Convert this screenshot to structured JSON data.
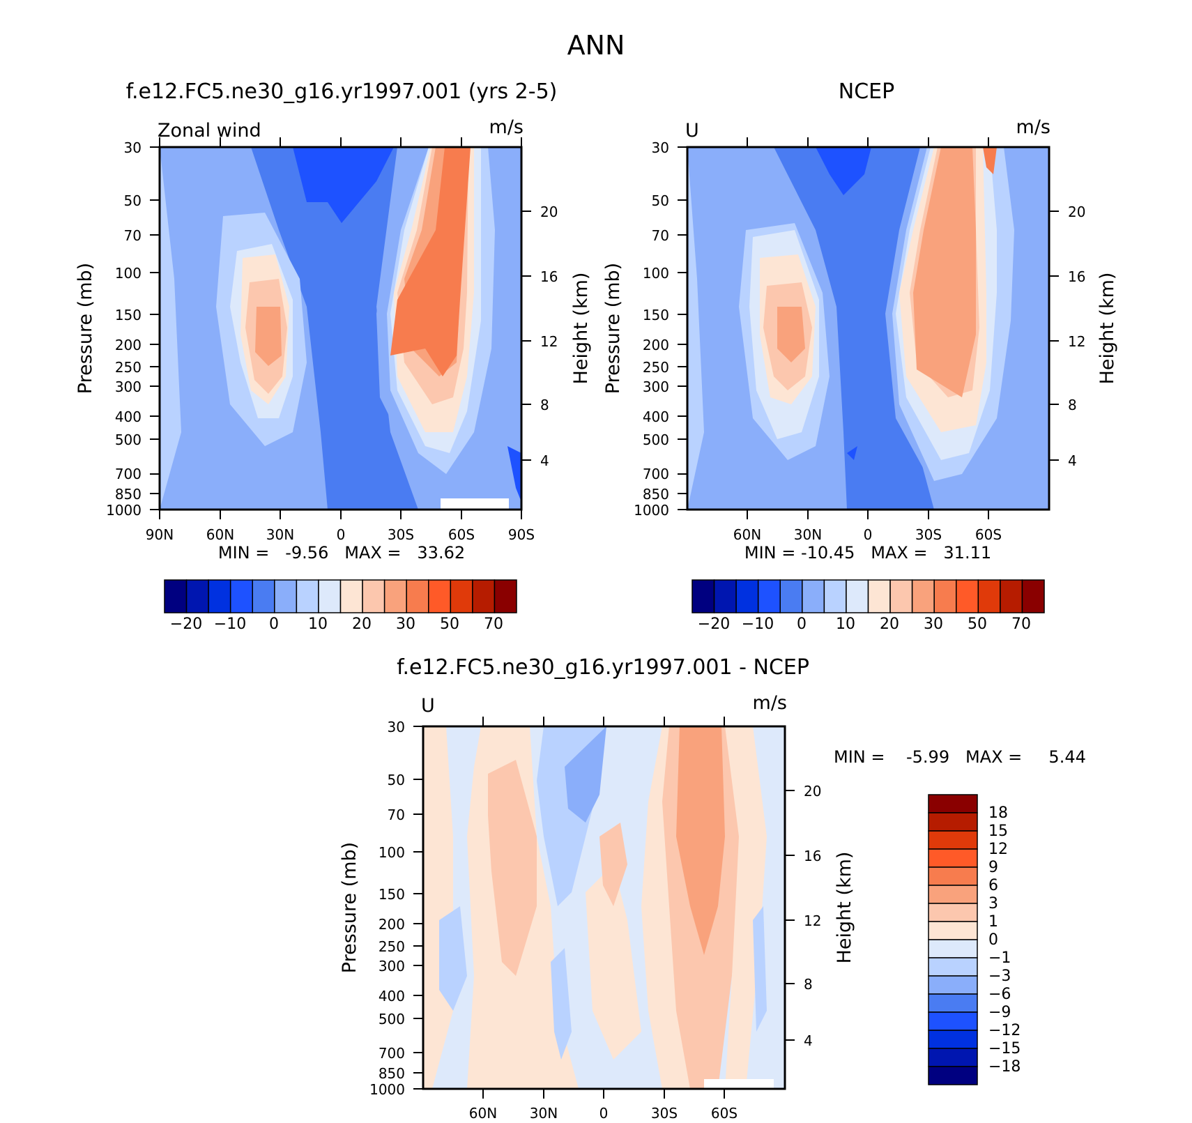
{
  "main_title": "ANN",
  "colors": {
    "p1": [
      "#000080",
      "#0016b0",
      "#0031e0",
      "#1e52ff",
      "#4a7cf2",
      "#8aaefa",
      "#b9d2ff",
      "#dde9fb",
      "#fde5d4",
      "#fcc7ae",
      "#f9a27c",
      "#f77c4e",
      "#ff5a28",
      "#e03a0a",
      "#b61c00",
      "#8a0000"
    ],
    "diff": [
      "#000080",
      "#0016b0",
      "#0031e0",
      "#1e52ff",
      "#4a7cf2",
      "#8aaefa",
      "#b9d2ff",
      "#dde9fb",
      "#fde5d4",
      "#fcc7ae",
      "#f9a27c",
      "#f77c4e",
      "#ff5a28",
      "#e03a0a",
      "#b61c00",
      "#8a0000"
    ],
    "white": "#ffffff"
  },
  "panels": {
    "model": {
      "title": "f.e12.FC5.ne30_g16.yr1997.001 (yrs 2-5)",
      "left_label": "Zonal wind",
      "unit": "m/s",
      "ylabel_left": "Pressure (mb)",
      "ylabel_right": "Height (km)",
      "stats": "MIN =   -9.56   MAX =   33.62"
    },
    "ncep": {
      "title": "NCEP",
      "left_label": "U",
      "unit": "m/s",
      "ylabel_left": "Pressure (mb)",
      "ylabel_right": "Height (km)",
      "stats": "MIN = -10.45   MAX =   31.11"
    },
    "diff": {
      "title": "f.e12.FC5.ne30_g16.yr1997.001 - NCEP",
      "left_label": "U",
      "unit": "m/s",
      "ylabel_left": "Pressure (mb)",
      "ylabel_right": "Height (km)",
      "stats": "MIN =    -5.99   MAX =     5.44"
    }
  },
  "chart_data": [
    {
      "type": "heatmap",
      "title": "f.e12.FC5.ne30_g16.yr1997.001 (yrs 2-5)",
      "xlabel": "",
      "ylabel": "Pressure (mb)",
      "ylabel_right": "Height (km)",
      "pressure_ticks": [
        30,
        50,
        70,
        100,
        150,
        200,
        250,
        300,
        400,
        500,
        700,
        850,
        1000
      ],
      "height_ticks": [
        20,
        16,
        12,
        8,
        4
      ],
      "lat_ticks": [
        "90N",
        "60N",
        "30N",
        "0",
        "30S",
        "60S",
        "90S"
      ],
      "colorbar": {
        "levels": [
          "-20",
          "-10",
          "0",
          "10",
          "20",
          "30",
          "50",
          "70"
        ],
        "orientation": "horizontal"
      },
      "min": -9.56,
      "max": 33.62
    },
    {
      "type": "heatmap",
      "title": "NCEP",
      "ylabel": "Pressure (mb)",
      "ylabel_right": "Height (km)",
      "pressure_ticks": [
        30,
        50,
        70,
        100,
        150,
        200,
        250,
        300,
        400,
        500,
        700,
        850,
        1000
      ],
      "height_ticks": [
        20,
        16,
        12,
        8,
        4
      ],
      "lat_ticks": [
        "60N",
        "30N",
        "0",
        "30S",
        "60S"
      ],
      "colorbar": {
        "levels": [
          "-20",
          "-10",
          "0",
          "10",
          "20",
          "30",
          "50",
          "70"
        ],
        "orientation": "horizontal"
      },
      "min": -10.45,
      "max": 31.11
    },
    {
      "type": "heatmap",
      "title": "f.e12.FC5.ne30_g16.yr1997.001 - NCEP",
      "ylabel": "Pressure (mb)",
      "ylabel_right": "Height (km)",
      "pressure_ticks": [
        30,
        50,
        70,
        100,
        150,
        200,
        250,
        300,
        400,
        500,
        700,
        850,
        1000
      ],
      "height_ticks": [
        20,
        16,
        12,
        8,
        4
      ],
      "lat_ticks": [
        "60N",
        "30N",
        "0",
        "30S",
        "60S"
      ],
      "colorbar": {
        "levels": [
          "18",
          "15",
          "12",
          "9",
          "6",
          "3",
          "1",
          "0",
          "-1",
          "-3",
          "-6",
          "-9",
          "-12",
          "-15",
          "-18"
        ],
        "orientation": "vertical"
      },
      "min": -5.99,
      "max": 5.44
    }
  ]
}
